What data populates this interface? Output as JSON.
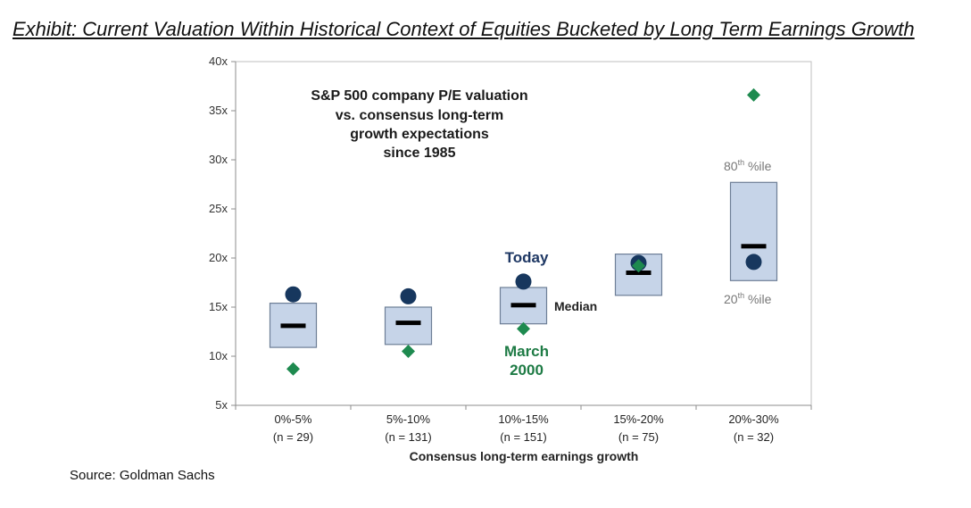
{
  "exhibit_title": "Exhibit: Current Valuation Within Historical Context of Equities Bucketed by Long Term Earnings Growth",
  "source": "Source: Goldman Sachs",
  "colors": {
    "box_fill": "#c6d4e8",
    "box_stroke": "#6d7e96",
    "today_marker": "#17375e",
    "march2000_marker": "#1e8a4f",
    "median_bar": "#000000"
  },
  "chart_data": {
    "type": "box-range",
    "title_lines": [
      "S&P 500 company P/E valuation",
      "vs. consensus long-term",
      "growth expectations",
      "since 1985"
    ],
    "xlabel": "Consensus long-term earnings growth",
    "ylim": [
      5,
      40
    ],
    "yticks": [
      5,
      10,
      15,
      20,
      25,
      30,
      35,
      40
    ],
    "ytick_labels": [
      "5x",
      "10x",
      "15x",
      "20x",
      "25x",
      "30x",
      "35x",
      "40x"
    ],
    "categories": [
      {
        "label": "0%-5%",
        "n": "(n = 29)",
        "p20": 10.9,
        "p80": 15.4,
        "median": 13.1,
        "today": 16.3,
        "march2000": 8.7
      },
      {
        "label": "5%-10%",
        "n": "(n = 131)",
        "p20": 11.2,
        "p80": 15.0,
        "median": 13.4,
        "today": 16.1,
        "march2000": 10.5
      },
      {
        "label": "10%-15%",
        "n": "(n = 151)",
        "p20": 13.3,
        "p80": 17.0,
        "median": 15.2,
        "today": 17.6,
        "march2000": 12.8
      },
      {
        "label": "15%-20%",
        "n": "(n = 75)",
        "p20": 16.2,
        "p80": 20.4,
        "median": 18.5,
        "today": 19.5,
        "march2000": 19.2
      },
      {
        "label": "20%-30%",
        "n": "(n = 32)",
        "p20": 17.7,
        "p80": 27.7,
        "median": 21.2,
        "today": 19.6,
        "march2000": 36.6
      }
    ],
    "annotations": {
      "today": "Today",
      "march2000_line1": "March",
      "march2000_line2": "2000",
      "median": "Median",
      "p80_base": "80",
      "p80_sup": "th",
      "p80_rest": " %ile",
      "p20_base": "20",
      "p20_sup": "th",
      "p20_rest": " %ile"
    }
  }
}
